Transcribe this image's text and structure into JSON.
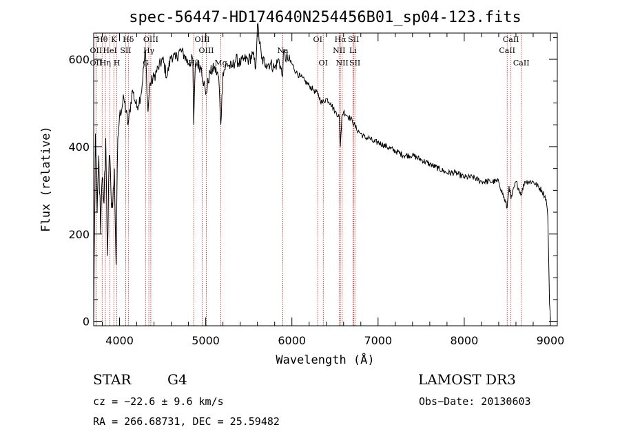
{
  "chart_data": {
    "type": "line",
    "title": "spec-56447-HD174640N254456B01_sp04-123.fits",
    "xlabel": "Wavelength (Å)",
    "ylabel": "Flux (relative)",
    "xlim": [
      3700,
      9080
    ],
    "ylim": [
      -10,
      660
    ],
    "xticks": [
      4000,
      5000,
      6000,
      7000,
      8000,
      9000
    ],
    "yticks": [
      0,
      200,
      400,
      600
    ],
    "series": [
      {
        "name": "flux",
        "x": [
          3700,
          3720,
          3740,
          3760,
          3780,
          3800,
          3820,
          3840,
          3860,
          3880,
          3900,
          3920,
          3940,
          3960,
          3980,
          4000,
          4050,
          4100,
          4150,
          4200,
          4250,
          4300,
          4330,
          4350,
          4400,
          4450,
          4500,
          4550,
          4600,
          4650,
          4700,
          4750,
          4800,
          4850,
          4861,
          4880,
          4900,
          4950,
          5000,
          5050,
          5100,
          5150,
          5175,
          5200,
          5250,
          5300,
          5350,
          5400,
          5450,
          5500,
          5550,
          5580,
          5600,
          5650,
          5700,
          5750,
          5800,
          5850,
          5890,
          5900,
          5950,
          6000,
          6050,
          6100,
          6150,
          6200,
          6250,
          6300,
          6350,
          6400,
          6450,
          6500,
          6550,
          6563,
          6580,
          6600,
          6650,
          6700,
          6750,
          6800,
          6850,
          6900,
          6950,
          7000,
          7100,
          7200,
          7300,
          7400,
          7500,
          7600,
          7700,
          7800,
          7900,
          8000,
          8100,
          8200,
          8300,
          8400,
          8498,
          8520,
          8542,
          8600,
          8662,
          8700,
          8800,
          8900,
          8950,
          8970,
          8980,
          8990,
          9000
        ],
        "values": [
          0,
          430,
          250,
          380,
          200,
          330,
          270,
          420,
          150,
          380,
          300,
          260,
          350,
          130,
          420,
          470,
          510,
          450,
          530,
          490,
          520,
          620,
          480,
          540,
          560,
          580,
          600,
          560,
          610,
          600,
          620,
          610,
          590,
          600,
          450,
          590,
          590,
          580,
          520,
          570,
          580,
          560,
          450,
          570,
          590,
          580,
          600,
          590,
          600,
          600,
          610,
          580,
          680,
          600,
          590,
          590,
          580,
          600,
          560,
          610,
          600,
          590,
          570,
          560,
          550,
          540,
          530,
          520,
          500,
          510,
          500,
          480,
          470,
          400,
          470,
          480,
          470,
          460,
          440,
          430,
          420,
          420,
          410,
          410,
          400,
          390,
          380,
          380,
          370,
          360,
          350,
          340,
          340,
          330,
          330,
          320,
          320,
          320,
          260,
          310,
          280,
          320,
          290,
          320,
          320,
          300,
          280,
          240,
          140,
          40,
          0
        ]
      }
    ],
    "line_marks": [
      {
        "label": "OII",
        "wl": 3727,
        "row": 2
      },
      {
        "label": "Hθ",
        "wl": 3798,
        "row": 1
      },
      {
        "label": "Hη",
        "wl": 3835,
        "row": 3
      },
      {
        "label": "OII",
        "wl": 3727,
        "row": 3
      },
      {
        "label": "HeI",
        "wl": 3889,
        "row": 2
      },
      {
        "label": "K",
        "wl": 3934,
        "row": 1
      },
      {
        "label": "SII",
        "wl": 4072,
        "row": 2
      },
      {
        "label": "H",
        "wl": 3969,
        "row": 3
      },
      {
        "label": "Hδ",
        "wl": 4102,
        "row": 1
      },
      {
        "label": "OIII",
        "wl": 4363,
        "row": 1
      },
      {
        "label": "Hγ",
        "wl": 4340,
        "row": 2
      },
      {
        "label": "G",
        "wl": 4305,
        "row": 3
      },
      {
        "label": "Hβ",
        "wl": 4861,
        "row": 3
      },
      {
        "label": "OIII",
        "wl": 4959,
        "row": 1
      },
      {
        "label": "OIII",
        "wl": 5007,
        "row": 2
      },
      {
        "label": "Mg",
        "wl": 5175,
        "row": 3
      },
      {
        "label": "Na",
        "wl": 5894,
        "row": 2
      },
      {
        "label": "OI",
        "wl": 6300,
        "row": 1
      },
      {
        "label": "OI",
        "wl": 6364,
        "row": 3
      },
      {
        "label": "Hα",
        "wl": 6563,
        "row": 1
      },
      {
        "label": "NII",
        "wl": 6548,
        "row": 2
      },
      {
        "label": "NII",
        "wl": 6583,
        "row": 3
      },
      {
        "label": "SII",
        "wl": 6716,
        "row": 1
      },
      {
        "label": "Li",
        "wl": 6708,
        "row": 2
      },
      {
        "label": "SII",
        "wl": 6731,
        "row": 3
      },
      {
        "label": "CaII",
        "wl": 8542,
        "row": 1
      },
      {
        "label": "CaII",
        "wl": 8498,
        "row": 2
      },
      {
        "label": "CaII",
        "wl": 8662,
        "row": 3
      }
    ],
    "colors": {
      "line": "#000000",
      "marker": "#b22222"
    }
  },
  "info": {
    "class": "STAR",
    "subclass": "G4",
    "survey": "LAMOST DR3",
    "cz": "cz = −22.6 ± 9.6 km/s",
    "obs_date": "Obs−Date: 20130603",
    "coords": "RA = 266.68731, DEC =  25.59482"
  }
}
